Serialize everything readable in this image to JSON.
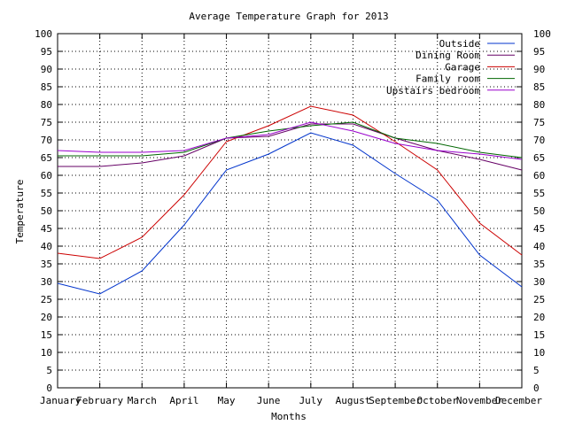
{
  "chart_data": {
    "type": "line",
    "title": "Average Temperature Graph for 2013",
    "xlabel": "Months",
    "ylabel": "Temperature",
    "categories": [
      "January",
      "February",
      "March",
      "April",
      "May",
      "June",
      "July",
      "August",
      "September",
      "October",
      "November",
      "December"
    ],
    "ylim": [
      0,
      100
    ],
    "yticks": [
      0,
      5,
      10,
      15,
      20,
      25,
      30,
      35,
      40,
      45,
      50,
      55,
      60,
      65,
      70,
      75,
      80,
      85,
      90,
      95,
      100
    ],
    "grid": true,
    "grid_style": "dotted",
    "legend_position": "top-right",
    "series": [
      {
        "name": "Outside",
        "color": "#0033cc",
        "values": [
          29.5,
          26.5,
          33,
          46,
          61.5,
          66,
          72,
          68.5,
          60.5,
          53,
          37.5,
          28.5
        ]
      },
      {
        "name": "Dining Room",
        "color": "#660066",
        "values": [
          62.5,
          62.5,
          63.5,
          65.5,
          70.5,
          71,
          74.5,
          74.5,
          70.5,
          67,
          64.5,
          61.5
        ]
      },
      {
        "name": "Garage",
        "color": "#cc0000",
        "values": [
          38,
          36.5,
          42.5,
          54.5,
          69.5,
          74,
          79.5,
          77,
          69.5,
          61.5,
          46.5,
          37.5
        ]
      },
      {
        "name": "Family room",
        "color": "#006600",
        "values": [
          65.5,
          65.5,
          65.5,
          66.5,
          70.5,
          72.5,
          74,
          75,
          70.5,
          69,
          66.5,
          65
        ]
      },
      {
        "name": "Upstairs bedroom",
        "color": "#9900cc",
        "values": [
          67,
          66.5,
          66.5,
          67,
          70.5,
          71.5,
          75,
          72.5,
          69,
          67,
          66,
          64.5
        ]
      }
    ]
  }
}
